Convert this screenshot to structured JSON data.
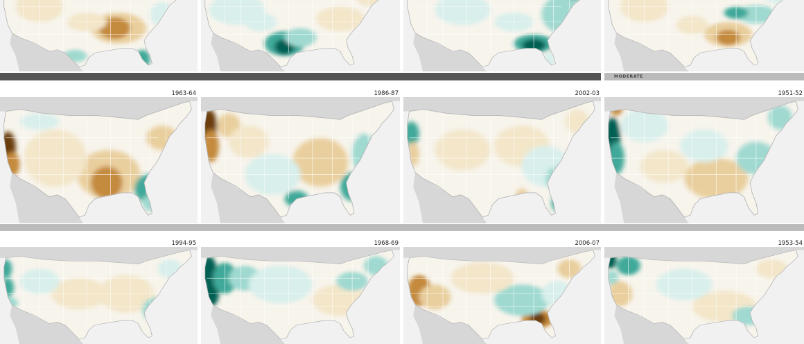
{
  "colors": {
    "dry_strong": "#6b3d0c",
    "dry": "#c48a3c",
    "dry_light": "#e9cf9e",
    "dry_faint": "#f3e6c9",
    "wet_faint": "#d8efec",
    "wet_light": "#9fd9d0",
    "wet": "#3fa99a",
    "wet_strong": "#065f52",
    "ocean": "#f1f1f1",
    "neighbor_land": "#d7d7d7",
    "bar_dark": "#555555",
    "bar_light": "#bbbbbb"
  },
  "bands": [
    {
      "label": "",
      "color_key": "bar_dark"
    },
    {
      "label": "MODERATE",
      "color_key": "bar_light"
    },
    {
      "label": "",
      "color_key": "bar_light"
    }
  ],
  "rows": [
    {
      "panels": [
        {
          "year": "",
          "pattern": "southern-dry"
        },
        {
          "year": "",
          "pattern": "texas-wet"
        },
        {
          "year": "",
          "pattern": "gulf-wet"
        },
        {
          "year": "",
          "pattern": "southeast-dry"
        }
      ]
    },
    {
      "panels": [
        {
          "year": "1963-64",
          "pattern": "west-dry-se-wet"
        },
        {
          "year": "1986-87",
          "pattern": "northwest-dry-se-wet"
        },
        {
          "year": "2002-03",
          "pattern": "mixed-light"
        },
        {
          "year": "1951-52",
          "pattern": "west-wet-south-dry"
        }
      ]
    },
    {
      "panels": [
        {
          "year": "1994-95",
          "pattern": "coast-wet"
        },
        {
          "year": "1968-69",
          "pattern": "west-very-wet"
        },
        {
          "year": "2006-07",
          "pattern": "southwest-dry-se-dry"
        },
        {
          "year": "1953-54",
          "pattern": "northwest-wet"
        }
      ]
    }
  ]
}
